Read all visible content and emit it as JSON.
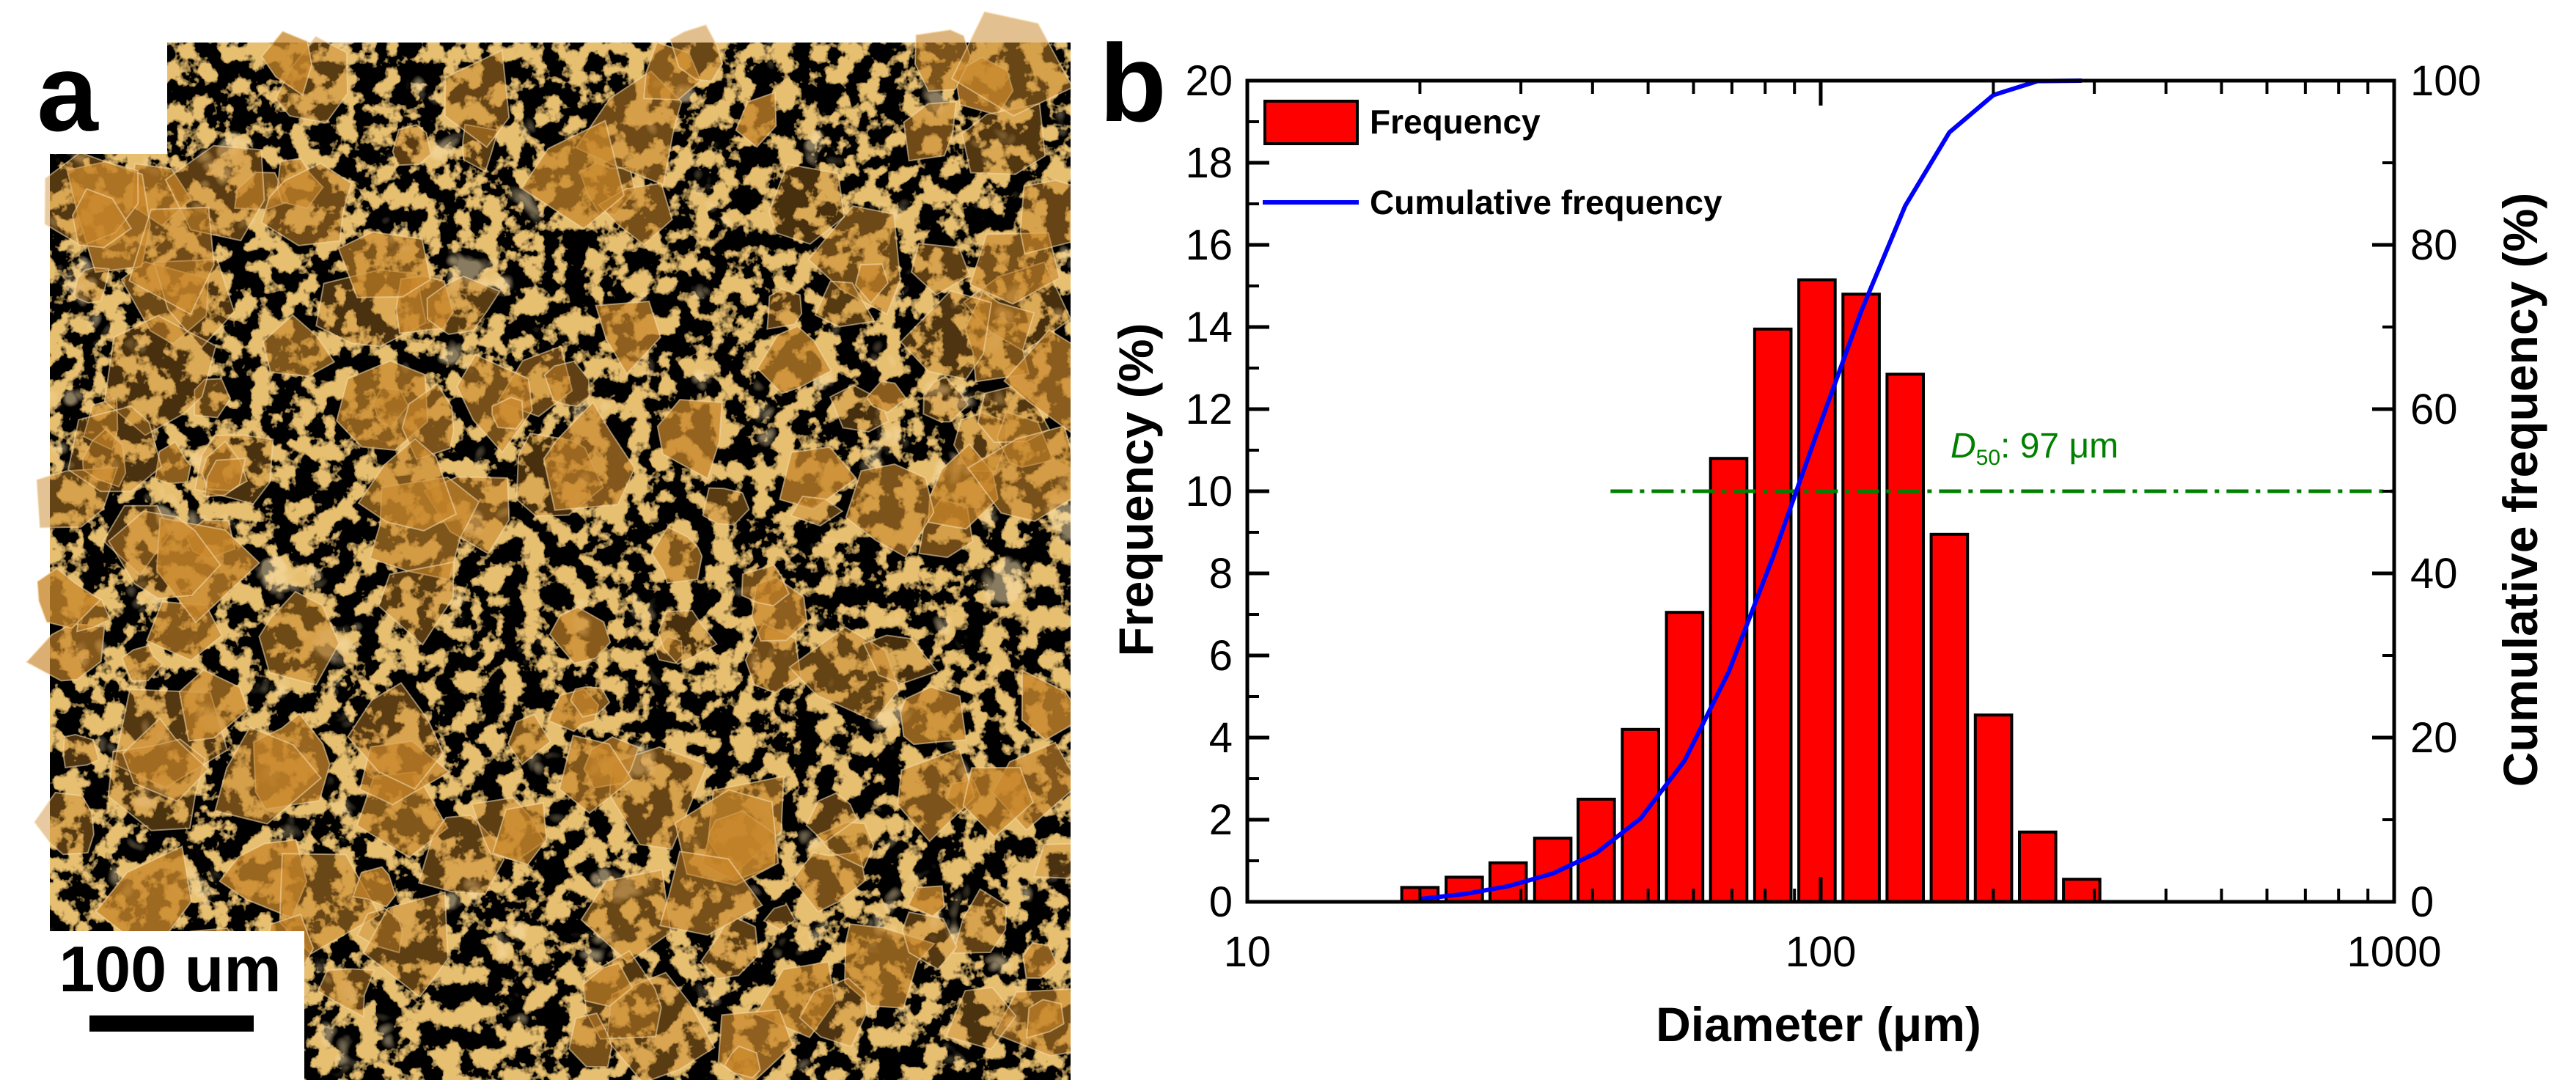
{
  "panel_a": {
    "label": "a",
    "scale_bar_text": "100 um",
    "image_tint": "#c8862a"
  },
  "panel_b": {
    "label": "b"
  },
  "chart_data": {
    "type": "bar",
    "title": "",
    "xlabel": "Diameter (μm)",
    "ylabel": "Frequency (%)",
    "y2label": "Cumulative frequency (%)",
    "xscale": "log",
    "xlim": [
      10,
      1000
    ],
    "ylim": [
      0,
      20
    ],
    "y2lim": [
      0,
      100
    ],
    "x_ticks": [
      10,
      100,
      1000
    ],
    "x_tick_labels": [
      "10",
      "100",
      "1000"
    ],
    "y_ticks": [
      0,
      2,
      4,
      6,
      8,
      10,
      12,
      14,
      16,
      18,
      20
    ],
    "y_tick_labels": [
      "0",
      "2",
      "4",
      "6",
      "8",
      "10",
      "12",
      "14",
      "16",
      "18",
      "20"
    ],
    "y2_ticks": [
      0,
      20,
      40,
      60,
      80,
      100
    ],
    "y2_tick_labels": [
      "0",
      "20",
      "40",
      "60",
      "80",
      "100"
    ],
    "legend_position": "top-left",
    "series": [
      {
        "name": "Frequency",
        "kind": "bar",
        "color": "#ff0000",
        "x": [
          20,
          23.9,
          28.5,
          34.1,
          40.6,
          48.5,
          57.9,
          69.1,
          82.5,
          98.5,
          117.6,
          140.4,
          167.6,
          200.1,
          238.9,
          285.2
        ],
        "values": [
          0.35,
          0.6,
          0.95,
          1.55,
          2.5,
          4.2,
          7.05,
          10.8,
          13.95,
          15.15,
          14.8,
          12.85,
          8.95,
          4.55,
          1.7,
          0.55
        ]
      },
      {
        "name": "Cumulative frequency",
        "kind": "line",
        "axis": "right",
        "color": "#0000ff",
        "x": [
          20,
          23.9,
          28.5,
          34.1,
          40.6,
          48.5,
          57.9,
          69.1,
          82.5,
          98.5,
          117.6,
          140.4,
          167.6,
          200.1,
          238.9,
          285.2
        ],
        "values": [
          0.35,
          0.95,
          1.9,
          3.45,
          5.95,
          10.15,
          17.2,
          28.0,
          41.95,
          57.1,
          71.9,
          84.75,
          93.7,
          98.25,
          99.95,
          100
        ]
      }
    ],
    "reference_line": {
      "axis": "right",
      "y": 50,
      "x_start": 43,
      "x_end": 1000,
      "color": "#008000",
      "style": "dash-dot"
    },
    "annotation": {
      "symbol": "D",
      "subscript": "50",
      "text": ": 97 μm",
      "color": "#008000"
    }
  }
}
